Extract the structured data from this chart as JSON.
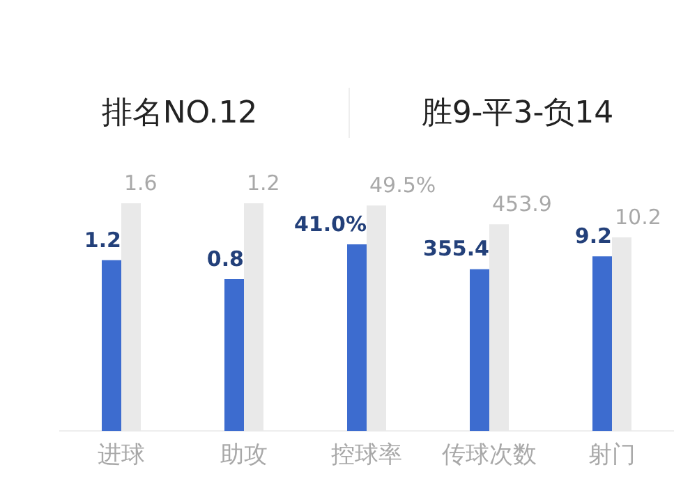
{
  "chart_data": [
    {
      "type": "other",
      "annotations": [
        "排名NO.12",
        "胜9-平3-负14"
      ]
    },
    {
      "type": "bar",
      "categories": [
        "进球"
      ],
      "tick_labels": "x",
      "series": [
        {
          "color": "#3d6ccf",
          "values": [
            1.2
          ],
          "value_labels": [
            "1.2"
          ]
        },
        {
          "color": "#e9e9e9",
          "values": [
            1.6
          ],
          "value_labels": [
            "1.6"
          ]
        }
      ]
    },
    {
      "type": "bar",
      "categories": [
        "助攻"
      ],
      "tick_labels": "x",
      "series": [
        {
          "color": "#3d6ccf",
          "values": [
            0.8
          ],
          "value_labels": [
            "0.8"
          ]
        },
        {
          "color": "#e9e9e9",
          "values": [
            1.2
          ],
          "value_labels": [
            "1.2"
          ]
        }
      ]
    },
    {
      "type": "bar",
      "categories": [
        "控球率"
      ],
      "tick_labels": "x",
      "series": [
        {
          "color": "#3d6ccf",
          "values": [
            41.0
          ],
          "value_labels": [
            "41.0%"
          ]
        },
        {
          "color": "#e9e9e9",
          "values": [
            49.5
          ],
          "value_labels": [
            "49.5%"
          ]
        }
      ]
    },
    {
      "type": "bar",
      "categories": [
        "传球次数"
      ],
      "tick_labels": "x",
      "series": [
        {
          "color": "#3d6ccf",
          "values": [
            355.4
          ],
          "value_labels": [
            "355.4"
          ]
        },
        {
          "color": "#e9e9e9",
          "values": [
            453.9
          ],
          "value_labels": [
            "453.9"
          ]
        }
      ]
    },
    {
      "type": "bar",
      "categories": [
        "射门"
      ],
      "tick_labels": "x",
      "series": [
        {
          "color": "#3d6ccf",
          "values": [
            9.2
          ],
          "value_labels": [
            "9.2"
          ]
        },
        {
          "color": "#e9e9e9",
          "values": [
            10.2
          ],
          "value_labels": [
            "10.2"
          ]
        }
      ]
    }
  ]
}
